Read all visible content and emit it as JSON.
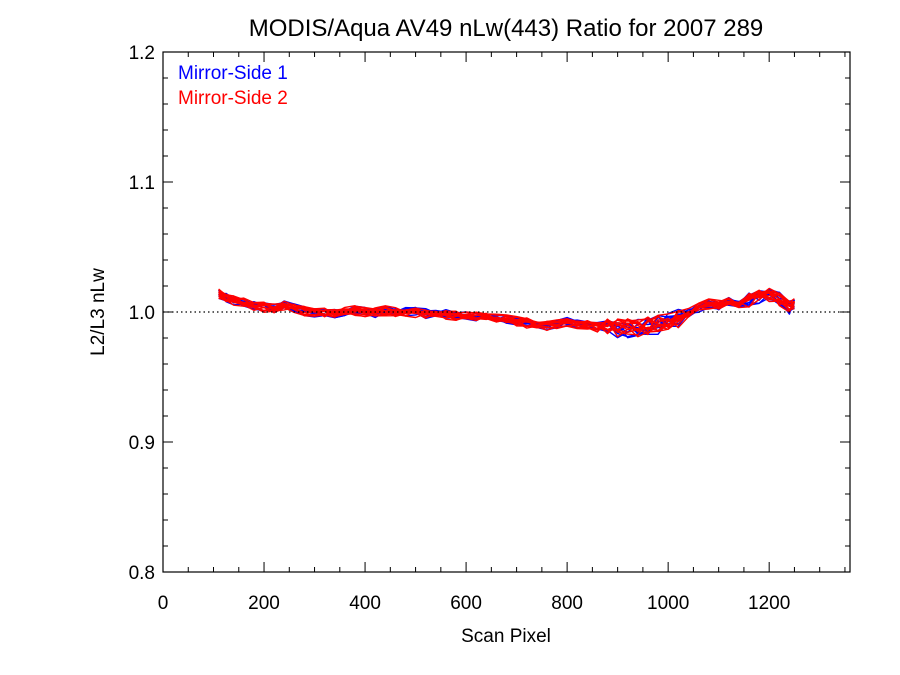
{
  "chart_data": {
    "type": "line",
    "title": "MODIS/Aqua AV49 nLw(443) Ratio for 2007 289",
    "xlabel": "Scan Pixel",
    "ylabel": "L2/L3 nLw",
    "xlim": [
      0,
      1360
    ],
    "ylim": [
      0.8,
      1.2
    ],
    "xticks": [
      0,
      200,
      400,
      600,
      800,
      1000,
      1200
    ],
    "xtick_labels": [
      "0",
      "200",
      "400",
      "600",
      "800",
      "1000",
      "1200"
    ],
    "yticks": [
      0.8,
      0.9,
      1.0,
      1.1,
      1.2
    ],
    "ytick_labels": [
      "0.8",
      "0.9",
      "1.0",
      "1.1",
      "1.2"
    ],
    "reference_line": {
      "y": 1.0,
      "style": "dotted",
      "color": "#000000"
    },
    "legend_position": "top-left",
    "legend": [
      {
        "label": "Mirror-Side 1",
        "color": "#0000ff"
      },
      {
        "label": "Mirror-Side 2",
        "color": "#ff0000"
      }
    ],
    "base_profile": {
      "x": [
        110,
        125,
        140,
        160,
        180,
        200,
        220,
        240,
        260,
        280,
        300,
        320,
        340,
        360,
        380,
        400,
        420,
        440,
        460,
        480,
        500,
        520,
        540,
        560,
        580,
        600,
        620,
        640,
        660,
        680,
        700,
        720,
        740,
        760,
        780,
        800,
        820,
        840,
        860,
        880,
        900,
        920,
        940,
        960,
        980,
        1000,
        1020,
        1040,
        1060,
        1080,
        1100,
        1120,
        1140,
        1160,
        1180,
        1200,
        1220,
        1240,
        1250
      ],
      "y": [
        1.014,
        1.011,
        1.009,
        1.007,
        1.005,
        1.004,
        1.003,
        1.005,
        1.003,
        1.001,
        1.0,
        0.999,
        0.999,
        1.0,
        1.001,
        1.0,
        1.0,
        1.001,
        1.0,
        1.0,
        1.0,
        0.999,
        0.999,
        0.998,
        0.997,
        0.997,
        0.996,
        0.996,
        0.995,
        0.994,
        0.993,
        0.992,
        0.991,
        0.99,
        0.991,
        0.992,
        0.991,
        0.99,
        0.989,
        0.989,
        0.987,
        0.988,
        0.987,
        0.989,
        0.99,
        0.992,
        0.995,
        0.999,
        1.004,
        1.006,
        1.005,
        1.008,
        1.006,
        1.009,
        1.012,
        1.014,
        1.01,
        1.004,
        1.006
      ]
    },
    "series": [
      {
        "name": "Mirror-Side 1",
        "color": "#0000ff",
        "count": 9
      },
      {
        "name": "Mirror-Side 2",
        "color": "#ff0000",
        "count": 13
      }
    ]
  }
}
